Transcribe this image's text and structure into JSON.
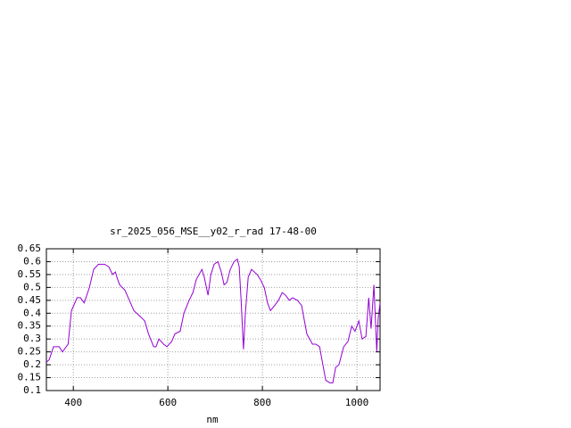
{
  "chart_data": {
    "type": "line",
    "title": "sr_2025_056_MSE__y02_r_rad 17-48-00",
    "x_label": "nm",
    "x": [
      343,
      349,
      358,
      370,
      377,
      389,
      396,
      408,
      415,
      423,
      434,
      443,
      453,
      466,
      475,
      483,
      489,
      494,
      498,
      509,
      521,
      528,
      540,
      551,
      559,
      570,
      575,
      581,
      591,
      598,
      608,
      615,
      626,
      634,
      645,
      653,
      660,
      672,
      677,
      685,
      691,
      698,
      706,
      713,
      719,
      725,
      732,
      740,
      747,
      751,
      755,
      760,
      764,
      770,
      777,
      789,
      796,
      804,
      811,
      817,
      826,
      834,
      842,
      849,
      857,
      864,
      874,
      883,
      894,
      906,
      913,
      921,
      928,
      934,
      943,
      949,
      955,
      962,
      972,
      981,
      989,
      996,
      1004,
      1011,
      1019,
      1025,
      1030,
      1036,
      1042,
      1045,
      1049
    ],
    "series": [
      {
        "name": "sr_2025_056_MSE__y02_r_rad",
        "color": "#9400d3",
        "values": [
          0.21,
          0.22,
          0.27,
          0.27,
          0.25,
          0.28,
          0.41,
          0.46,
          0.46,
          0.44,
          0.5,
          0.57,
          0.59,
          0.59,
          0.58,
          0.55,
          0.56,
          0.53,
          0.51,
          0.49,
          0.44,
          0.41,
          0.39,
          0.37,
          0.32,
          0.27,
          0.27,
          0.3,
          0.28,
          0.27,
          0.29,
          0.32,
          0.33,
          0.4,
          0.45,
          0.48,
          0.53,
          0.57,
          0.54,
          0.47,
          0.55,
          0.59,
          0.6,
          0.56,
          0.51,
          0.52,
          0.57,
          0.6,
          0.61,
          0.58,
          0.45,
          0.26,
          0.4,
          0.54,
          0.57,
          0.55,
          0.53,
          0.5,
          0.44,
          0.41,
          0.43,
          0.45,
          0.48,
          0.47,
          0.45,
          0.46,
          0.45,
          0.43,
          0.32,
          0.28,
          0.28,
          0.27,
          0.2,
          0.14,
          0.13,
          0.13,
          0.19,
          0.2,
          0.27,
          0.29,
          0.35,
          0.33,
          0.37,
          0.3,
          0.31,
          0.46,
          0.34,
          0.51,
          0.25,
          0.38,
          0.44
        ]
      }
    ],
    "xlim": [
      343,
      1049
    ],
    "ylim": [
      0.1,
      0.65
    ],
    "xticks": [
      400,
      600,
      800,
      1000
    ],
    "yticks": [
      0.1,
      0.15,
      0.2,
      0.25,
      0.3,
      0.35,
      0.4,
      0.45,
      0.5,
      0.55,
      0.6,
      0.65
    ],
    "grid": true
  }
}
